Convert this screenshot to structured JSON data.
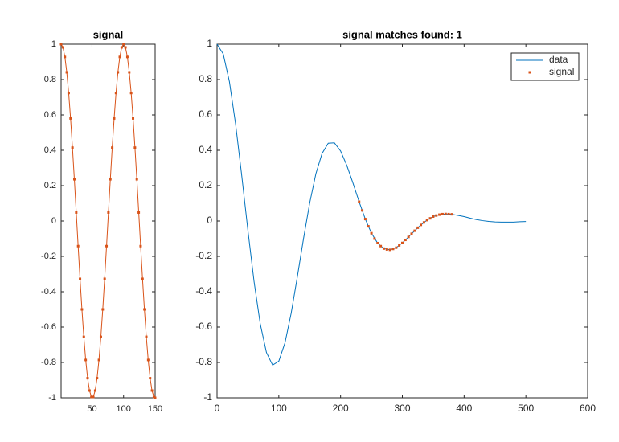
{
  "chart_data": [
    {
      "type": "line",
      "title": "signal",
      "xlim": [
        1,
        150
      ],
      "xticks": [
        50,
        100,
        150
      ],
      "ylim": [
        -1,
        1
      ],
      "yticks": [
        -1,
        -0.8,
        -0.6,
        -0.4,
        -0.2,
        0,
        0.2,
        0.4,
        0.6,
        0.8,
        1
      ],
      "series": [
        {
          "color": "#d95319",
          "style": "line+markers",
          "x": [
            1,
            4,
            7,
            10,
            13,
            16,
            19,
            22,
            25,
            28,
            31,
            34,
            37,
            40,
            43,
            46,
            49,
            52,
            55,
            58,
            61,
            64,
            67,
            70,
            73,
            76,
            79,
            82,
            85,
            88,
            91,
            94,
            97,
            100,
            103,
            106,
            109,
            112,
            115,
            118,
            121,
            124,
            127,
            130,
            133,
            136,
            139,
            142,
            145,
            148,
            150
          ],
          "values": [
            1,
            0.982,
            0.928,
            0.841,
            0.724,
            0.58,
            0.415,
            0.236,
            0.048,
            -0.142,
            -0.327,
            -0.5,
            -0.655,
            -0.786,
            -0.889,
            -0.959,
            -0.995,
            -0.995,
            -0.959,
            -0.889,
            -0.786,
            -0.655,
            -0.5,
            -0.327,
            -0.142,
            0.048,
            0.236,
            0.415,
            0.58,
            0.724,
            0.841,
            0.928,
            0.982,
            1,
            0.982,
            0.928,
            0.841,
            0.724,
            0.58,
            0.415,
            0.236,
            0.048,
            -0.142,
            -0.327,
            -0.5,
            -0.655,
            -0.786,
            -0.889,
            -0.959,
            -0.995,
            -1
          ]
        }
      ]
    },
    {
      "type": "line",
      "title": "signal matches found: 1",
      "xlim": [
        0,
        600
      ],
      "xticks": [
        0,
        100,
        200,
        300,
        400,
        500,
        600
      ],
      "ylim": [
        -1,
        1
      ],
      "yticks": [
        -1,
        -0.8,
        -0.6,
        -0.4,
        -0.2,
        0,
        0.2,
        0.4,
        0.6,
        0.8,
        1
      ],
      "legend": "northeast",
      "series": [
        {
          "name": "data",
          "color": "#0072bd",
          "style": "line",
          "x": [
            0,
            10,
            20,
            30,
            40,
            50,
            60,
            70,
            80,
            90,
            100,
            110,
            120,
            130,
            140,
            150,
            160,
            170,
            180,
            190,
            200,
            210,
            220,
            230,
            240,
            250,
            260,
            270,
            280,
            290,
            300,
            310,
            320,
            330,
            340,
            350,
            360,
            370,
            380,
            390,
            400,
            410,
            420,
            430,
            440,
            450,
            460,
            470,
            480,
            490,
            500
          ],
          "values": [
            1,
            0.945,
            0.788,
            0.549,
            0.256,
            -0.054,
            -0.344,
            -0.583,
            -0.744,
            -0.815,
            -0.793,
            -0.689,
            -0.522,
            -0.316,
            -0.1,
            0.102,
            0.267,
            0.382,
            0.44,
            0.442,
            0.396,
            0.315,
            0.215,
            0.109,
            0.011,
            -0.069,
            -0.125,
            -0.156,
            -0.163,
            -0.151,
            -0.124,
            -0.09,
            -0.055,
            -0.022,
            0.005,
            0.025,
            0.036,
            0.04,
            0.038,
            0.032,
            0.025,
            0.016,
            0.008,
            0.002,
            -0.002,
            -0.005,
            -0.006,
            -0.006,
            -0.006,
            -0.004,
            -0.003
          ]
        },
        {
          "name": "signal",
          "color": "#d95319",
          "style": "markers",
          "x": [
            230,
            235,
            240,
            245,
            250,
            255,
            260,
            265,
            270,
            275,
            280,
            285,
            290,
            295,
            300,
            305,
            310,
            315,
            320,
            325,
            330,
            335,
            340,
            345,
            350,
            355,
            360,
            365,
            370,
            375,
            380
          ],
          "values": [
            0.109,
            0.06,
            0.011,
            -0.03,
            -0.069,
            -0.1,
            -0.125,
            -0.142,
            -0.156,
            -0.161,
            -0.163,
            -0.158,
            -0.151,
            -0.138,
            -0.124,
            -0.107,
            -0.09,
            -0.072,
            -0.055,
            -0.038,
            -0.022,
            -0.008,
            0.005,
            0.015,
            0.025,
            0.031,
            0.036,
            0.039,
            0.04,
            0.039,
            0.038
          ]
        }
      ]
    }
  ]
}
